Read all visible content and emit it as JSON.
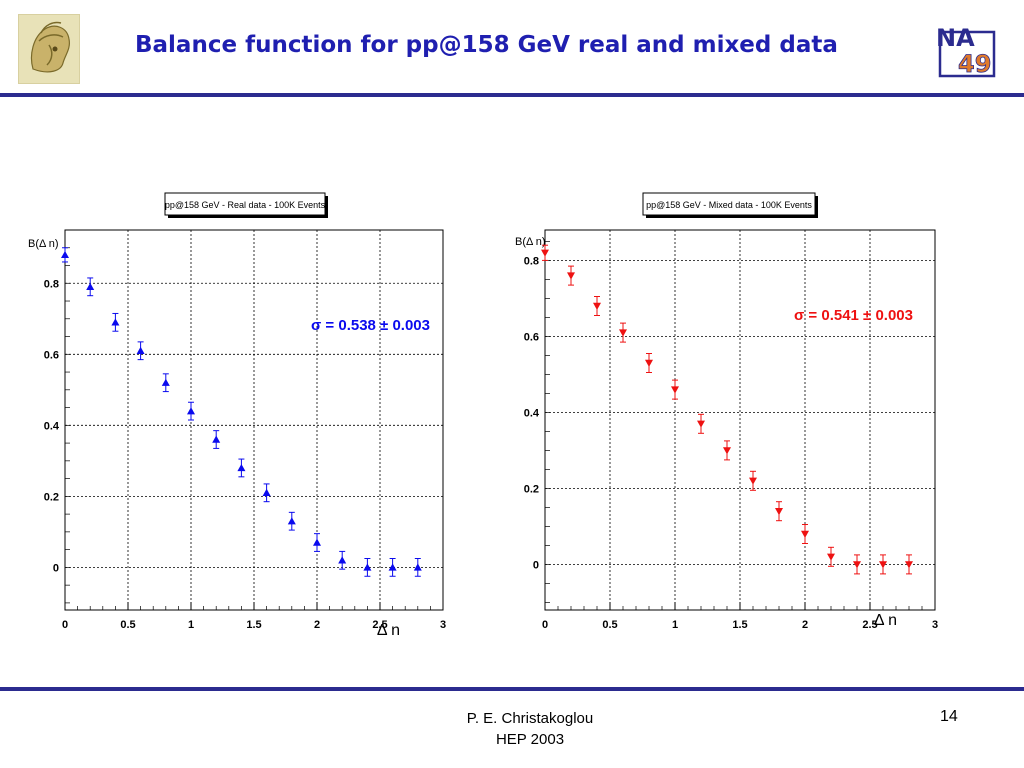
{
  "slide": {
    "title": "Balance function for pp@158 GeV real and mixed data",
    "footer_line1": "P. E. Christakoglou",
    "footer_line2": "HEP 2003",
    "page_number": "14"
  },
  "logo": {
    "left_icon": "helmet-emblem-icon",
    "right_icon": "na49-logo-icon",
    "right_text_top": "NA",
    "right_text_bottom": "49"
  },
  "colors": {
    "accent": "#2b2b8f",
    "title": "#1f1fb0",
    "real": "#0a0aee",
    "mixed": "#ee1111"
  },
  "chart_data": [
    {
      "type": "scatter",
      "title": "pp@158 GeV - Real data - 100K Events",
      "xlabel": "Δ n",
      "ylabel": "B(Δ n)",
      "xlim": [
        0,
        3
      ],
      "ylim": [
        -0.12,
        0.95
      ],
      "xticks": [
        "0",
        "0.5",
        "1",
        "1.5",
        "2",
        "2.5",
        "3"
      ],
      "yticks": [
        "0",
        "0.2",
        "0.4",
        "0.6",
        "0.8"
      ],
      "grid": true,
      "marker": "triangle-up",
      "color": "#0a0aee",
      "annotation": "σ = 0.538 ± 0.003",
      "x": [
        0,
        0.2,
        0.4,
        0.6,
        0.8,
        1.0,
        1.2,
        1.4,
        1.6,
        1.8,
        2.0,
        2.2,
        2.4,
        2.6,
        2.8
      ],
      "y": [
        0.88,
        0.79,
        0.69,
        0.61,
        0.52,
        0.44,
        0.36,
        0.28,
        0.21,
        0.13,
        0.07,
        0.02,
        0.0,
        0.0,
        0.0
      ],
      "err": [
        0.02,
        0.025,
        0.025,
        0.025,
        0.025,
        0.025,
        0.025,
        0.025,
        0.025,
        0.025,
        0.025,
        0.025,
        0.025,
        0.025,
        0.025
      ]
    },
    {
      "type": "scatter",
      "title": "pp@158 GeV - Mixed data - 100K Events",
      "xlabel": "Δ n",
      "ylabel": "B(Δ n)",
      "xlim": [
        0,
        3
      ],
      "ylim": [
        -0.12,
        0.88
      ],
      "xticks": [
        "0",
        "0.5",
        "1",
        "1.5",
        "2",
        "2.5",
        "3"
      ],
      "yticks": [
        "0",
        "0.2",
        "0.4",
        "0.6",
        "0.8"
      ],
      "grid": true,
      "marker": "triangle-down",
      "color": "#ee1111",
      "annotation": "σ = 0.541 ± 0.003",
      "x": [
        0,
        0.2,
        0.4,
        0.6,
        0.8,
        1.0,
        1.2,
        1.4,
        1.6,
        1.8,
        2.0,
        2.2,
        2.4,
        2.6,
        2.8
      ],
      "y": [
        0.82,
        0.76,
        0.68,
        0.61,
        0.53,
        0.46,
        0.37,
        0.3,
        0.22,
        0.14,
        0.08,
        0.02,
        0.0,
        0.0,
        0.0
      ],
      "err": [
        0.02,
        0.025,
        0.025,
        0.025,
        0.025,
        0.025,
        0.025,
        0.025,
        0.025,
        0.025,
        0.025,
        0.025,
        0.025,
        0.025,
        0.025
      ]
    }
  ]
}
